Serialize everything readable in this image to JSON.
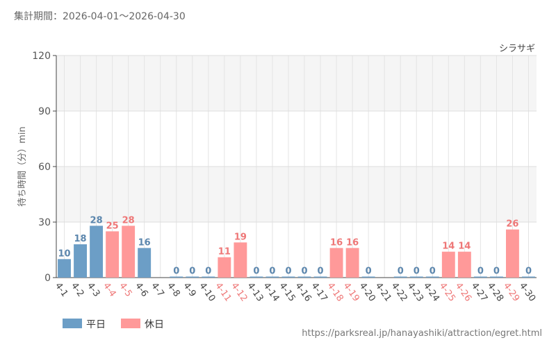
{
  "header": {
    "period": "集計期間：2026-04-01～2026-04-30"
  },
  "footer": {
    "url": "https://parksreal.jp/hanayashiki/attraction/egret.html"
  },
  "colors": {
    "weekday": "#6c9ec6",
    "holiday": "#ff9999",
    "weekday_label": "#5b86ad",
    "holiday_label": "#ee7777"
  },
  "chart_data": {
    "type": "bar",
    "title": "シラサギ",
    "ylabel": "待ち時間（分）min",
    "ylim": [
      0,
      120
    ],
    "yticks": [
      0,
      30,
      60,
      90,
      120
    ],
    "grid": true,
    "legend_position": "bottom-left",
    "categories": [
      "4-1",
      "4-2",
      "4-3",
      "4-4",
      "4-5",
      "4-6",
      "4-7",
      "4-8",
      "4-9",
      "4-10",
      "4-11",
      "4-12",
      "4-13",
      "4-14",
      "4-15",
      "4-16",
      "4-17",
      "4-18",
      "4-19",
      "4-20",
      "4-21",
      "4-22",
      "4-23",
      "4-24",
      "4-25",
      "4-26",
      "4-27",
      "4-28",
      "4-29",
      "4-30"
    ],
    "values": [
      10,
      18,
      28,
      25,
      28,
      16,
      null,
      0,
      0,
      0,
      11,
      19,
      0,
      0,
      0,
      0,
      0,
      16,
      16,
      0,
      null,
      0,
      0,
      0,
      14,
      14,
      0,
      0,
      26,
      0
    ],
    "day_type": [
      "w",
      "w",
      "w",
      "h",
      "h",
      "w",
      "w",
      "w",
      "w",
      "w",
      "h",
      "h",
      "w",
      "w",
      "w",
      "w",
      "w",
      "h",
      "h",
      "w",
      "w",
      "w",
      "w",
      "w",
      "h",
      "h",
      "w",
      "w",
      "h",
      "w"
    ],
    "legend": [
      {
        "name": "平日",
        "type": "w"
      },
      {
        "name": "休日",
        "type": "h"
      }
    ]
  }
}
